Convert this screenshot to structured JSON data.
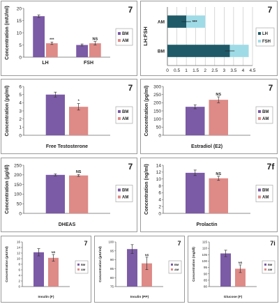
{
  "figure": {
    "bar_colors": {
      "BM": "#7b5aa6",
      "AM": "#de8a87"
    },
    "lhfsh_colors": {
      "LH": "#1f5a68",
      "FSH": "#9fdbe6"
    }
  },
  "chart_data": [
    {
      "id": "lh-fsh",
      "type": "bar",
      "panel_label": "7",
      "categories": [
        "LH",
        "FSH"
      ],
      "series": [
        {
          "name": "BM",
          "values": [
            16.8,
            5.0
          ],
          "errors": [
            0.5,
            0.4
          ]
        },
        {
          "name": "AM",
          "values": [
            5.7,
            5.7
          ],
          "errors": [
            0.5,
            0.7
          ]
        }
      ],
      "significance": [
        "***",
        "NS"
      ],
      "ylabel": "Concentration (mIU/ml)",
      "ylim": [
        0,
        20
      ],
      "yticks": [
        0,
        5,
        10,
        15,
        20
      ],
      "grid": false,
      "legend": "right"
    },
    {
      "id": "lh-fsh-ratio",
      "type": "bar",
      "orientation": "horizontal",
      "stacked": true,
      "panel_label": "7",
      "categories": [
        "AM",
        "BM"
      ],
      "series": [
        {
          "name": "LH",
          "values": [
            1.0,
            3.3
          ]
        },
        {
          "name": "FSH",
          "values": [
            1.0,
            1.0
          ]
        }
      ],
      "errors": [
        0.25,
        0.25
      ],
      "significance": [
        "***",
        ""
      ],
      "ylabel": "LH:FSH",
      "xlim": [
        0,
        4.5
      ],
      "xticks": [
        "0",
        "0.5",
        "1",
        "1.5",
        "2",
        "2.5",
        "3",
        "3.5",
        "4",
        "4.5"
      ],
      "xtick_values": [
        0,
        0.5,
        1,
        1.5,
        2,
        2.5,
        3,
        3.5,
        4,
        4.5
      ],
      "grid": true,
      "legend": "right"
    },
    {
      "id": "free-testosterone",
      "type": "bar",
      "panel_label": "7",
      "categories": [
        "Free Testosterone"
      ],
      "series": [
        {
          "name": "BM",
          "values": [
            5.0
          ],
          "errors": [
            0.3
          ]
        },
        {
          "name": "AM",
          "values": [
            3.5
          ],
          "errors": [
            0.4
          ]
        }
      ],
      "significance": [
        "*"
      ],
      "ylabel": "Concentration (pg/ml)",
      "xlabel": "Free Testosterone",
      "ylim": [
        0,
        6
      ],
      "yticks": [
        0,
        1,
        2,
        3,
        4,
        5,
        6
      ],
      "grid": false,
      "legend": "right"
    },
    {
      "id": "estradiol",
      "type": "bar",
      "panel_label": "7",
      "categories": [
        "Estradiol (E2)"
      ],
      "series": [
        {
          "name": "BM",
          "values": [
            175
          ],
          "errors": [
            12
          ]
        },
        {
          "name": "AM",
          "values": [
            218
          ],
          "errors": [
            18
          ]
        }
      ],
      "significance": [
        "NS"
      ],
      "ylabel": "Concentration (pg/ml)",
      "xlabel": "Estradiol (E2)",
      "ylim": [
        0,
        300
      ],
      "yticks": [
        0,
        50,
        100,
        150,
        200,
        250,
        300
      ],
      "grid": false,
      "legend": "right"
    },
    {
      "id": "dheas",
      "type": "bar",
      "panel_label": "7",
      "categories": [
        "DHEAS"
      ],
      "series": [
        {
          "name": "BM",
          "values": [
            200
          ],
          "errors": [
            5
          ]
        },
        {
          "name": "AM",
          "values": [
            197
          ],
          "errors": [
            5
          ]
        }
      ],
      "significance": [
        "NS"
      ],
      "ylabel": "Concentration (µg/dl)",
      "xlabel": "DHEAS",
      "ylim": [
        0,
        250
      ],
      "yticks": [
        0,
        50,
        100,
        150,
        200,
        250
      ],
      "grid": false,
      "legend": "right"
    },
    {
      "id": "prolactin",
      "type": "bar",
      "panel_label": "7f",
      "categories": [
        "Prolactin"
      ],
      "series": [
        {
          "name": "BM",
          "values": [
            11.8
          ],
          "errors": [
            0.8
          ]
        },
        {
          "name": "AM",
          "values": [
            10.2
          ],
          "errors": [
            0.6
          ]
        }
      ],
      "significance": [
        "NS"
      ],
      "ylabel": "Concentration (ng/ml)",
      "xlabel": "Prolactin",
      "ylim": [
        0,
        14
      ],
      "yticks": [
        0,
        2,
        4,
        6,
        8,
        10,
        12,
        14
      ],
      "grid": false,
      "legend": "right"
    },
    {
      "id": "insulin-f",
      "type": "bar",
      "panel_label": "7",
      "categories": [
        "Insulin (F)"
      ],
      "series": [
        {
          "name": "BM",
          "values": [
            12.3
          ],
          "errors": [
            1.3
          ]
        },
        {
          "name": "AM",
          "values": [
            10.3
          ],
          "errors": [
            1.2
          ]
        }
      ],
      "significance": [
        "NS"
      ],
      "ylabel": "Concentration (µIU/ml)",
      "xlabel": "Insulin (F)",
      "ylim": [
        0,
        16
      ],
      "yticks": [
        0,
        2,
        4,
        6,
        8,
        10,
        12,
        14,
        16
      ],
      "grid": false,
      "legend": "right"
    },
    {
      "id": "insulin-pp",
      "type": "bar",
      "panel_label": "7",
      "categories": [
        "Insulin (PP)"
      ],
      "series": [
        {
          "name": "BM",
          "values": [
            96
          ],
          "errors": [
            2.5
          ]
        },
        {
          "name": "AM",
          "values": [
            88
          ],
          "errors": [
            3.5
          ]
        }
      ],
      "significance": [
        "NS"
      ],
      "ylabel": "Concentration (µIU/ml)",
      "xlabel": "Insulin (PP)",
      "ylim": [
        75,
        100
      ],
      "yticks": [
        75,
        80,
        85,
        90,
        95,
        100
      ],
      "grid": false,
      "legend": "right"
    },
    {
      "id": "glucose-f",
      "type": "bar",
      "panel_label": "7i",
      "categories": [
        "Glucose (F)"
      ],
      "series": [
        {
          "name": "BM",
          "values": [
            106
          ],
          "errors": [
            2.5
          ]
        },
        {
          "name": "AM",
          "values": [
            94
          ],
          "errors": [
            3
          ]
        }
      ],
      "significance": [
        "NS"
      ],
      "ylabel": "Concentration (mg/dl)",
      "xlabel": "Glucose (F)",
      "ylim": [
        80,
        115
      ],
      "yticks": [
        80,
        85,
        90,
        95,
        100,
        105,
        110,
        115
      ],
      "grid": false,
      "legend": "right"
    }
  ]
}
